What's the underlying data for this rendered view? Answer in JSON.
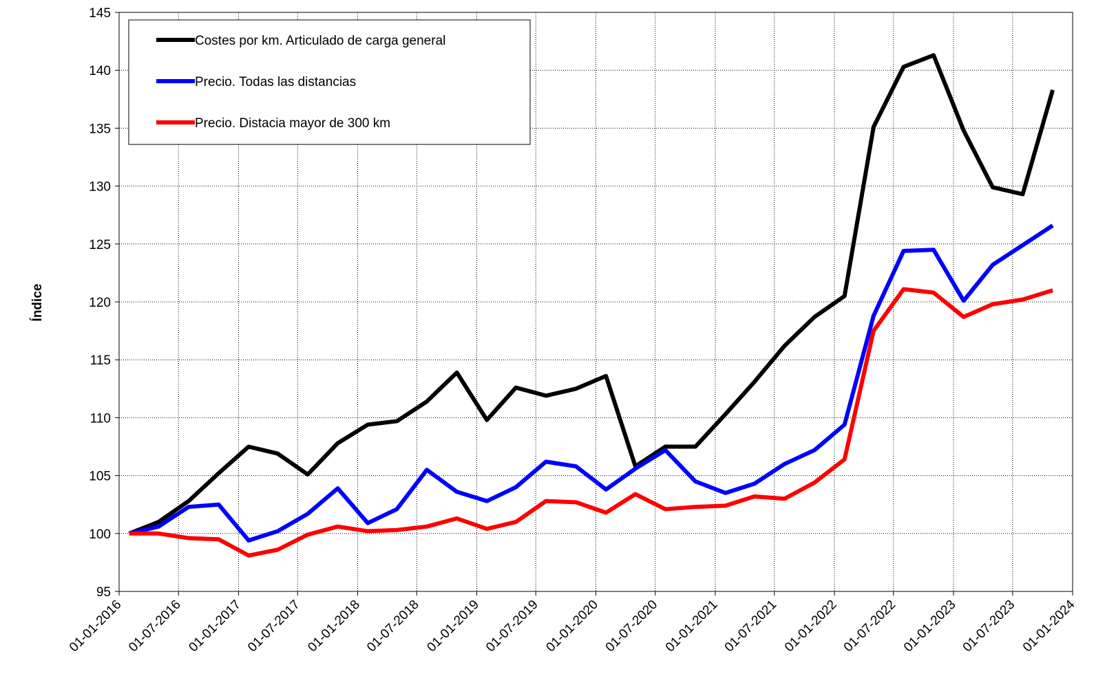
{
  "chart_data": {
    "type": "line",
    "y_label": "Índice",
    "x": [
      "2016-02-01",
      "2016-05-01",
      "2016-08-01",
      "2016-11-01",
      "2017-02-01",
      "2017-05-01",
      "2017-08-01",
      "2017-11-01",
      "2018-02-01",
      "2018-05-01",
      "2018-08-01",
      "2018-11-01",
      "2019-02-01",
      "2019-05-01",
      "2019-08-01",
      "2019-11-01",
      "2020-02-01",
      "2020-05-01",
      "2020-08-01",
      "2020-11-01",
      "2021-02-01",
      "2021-05-01",
      "2021-08-01",
      "2021-11-01",
      "2022-02-01",
      "2022-05-01",
      "2022-08-01",
      "2022-11-01",
      "2023-02-01",
      "2023-05-01",
      "2023-08-01",
      "2023-11-01"
    ],
    "series": [
      {
        "name": "Costes por km. Articulado de carga general",
        "color": "#000000",
        "values": [
          100,
          101.0,
          102.8,
          105.2,
          107.5,
          106.9,
          105.1,
          107.8,
          109.4,
          109.7,
          111.4,
          113.9,
          109.8,
          112.6,
          111.9,
          112.5,
          113.6,
          105.8,
          107.5,
          107.5,
          110.3,
          113.1,
          116.2,
          118.7,
          120.5,
          135.1,
          140.3,
          141.3,
          134.8,
          129.9,
          129.3,
          138.3
        ]
      },
      {
        "name": "Precio. Todas las distancias",
        "color": "#0000ff",
        "values": [
          100,
          100.6,
          102.3,
          102.5,
          99.4,
          100.2,
          101.7,
          103.9,
          100.9,
          102.1,
          105.5,
          103.6,
          102.8,
          104.0,
          106.2,
          105.8,
          103.8,
          105.6,
          107.2,
          104.5,
          103.5,
          104.3,
          106.0,
          107.2,
          109.4,
          118.8,
          124.4,
          124.5,
          120.1,
          123.2,
          124.9,
          126.6
        ]
      },
      {
        "name": "Precio. Distacia mayor de 300 km",
        "color": "#ff0000",
        "values": [
          100,
          100.0,
          99.6,
          99.5,
          98.1,
          98.6,
          99.9,
          100.6,
          100.2,
          100.3,
          100.6,
          101.3,
          100.4,
          101.0,
          102.8,
          102.7,
          101.8,
          103.4,
          102.1,
          102.3,
          102.4,
          103.2,
          103.0,
          104.4,
          106.4,
          117.5,
          121.1,
          120.8,
          118.7,
          119.8,
          120.2,
          121.0
        ]
      }
    ],
    "xlim": [
      "2016-01-01",
      "2024-01-01"
    ],
    "xticks": [
      {
        "value": "2016-01-01",
        "label": "01-01-2016"
      },
      {
        "value": "2016-07-01",
        "label": "01-07-2016"
      },
      {
        "value": "2017-01-01",
        "label": "01-01-2017"
      },
      {
        "value": "2017-07-01",
        "label": "01-07-2017"
      },
      {
        "value": "2018-01-01",
        "label": "01-01-2018"
      },
      {
        "value": "2018-07-01",
        "label": "01-07-2018"
      },
      {
        "value": "2019-01-01",
        "label": "01-01-2019"
      },
      {
        "value": "2019-07-01",
        "label": "01-07-2019"
      },
      {
        "value": "2020-01-01",
        "label": "01-01-2020"
      },
      {
        "value": "2020-07-01",
        "label": "01-07-2020"
      },
      {
        "value": "2021-01-01",
        "label": "01-01-2021"
      },
      {
        "value": "2021-07-01",
        "label": "01-07-2021"
      },
      {
        "value": "2022-01-01",
        "label": "01-01-2022"
      },
      {
        "value": "2022-07-01",
        "label": "01-07-2022"
      },
      {
        "value": "2023-01-01",
        "label": "01-01-2023"
      },
      {
        "value": "2023-07-01",
        "label": "01-07-2023"
      },
      {
        "value": "2024-01-01",
        "label": "01-01-2024"
      }
    ],
    "ylim": [
      95,
      145
    ],
    "yticks": [
      95,
      100,
      105,
      110,
      115,
      120,
      125,
      130,
      135,
      140,
      145
    ],
    "grid": true,
    "legend": "top-left"
  }
}
